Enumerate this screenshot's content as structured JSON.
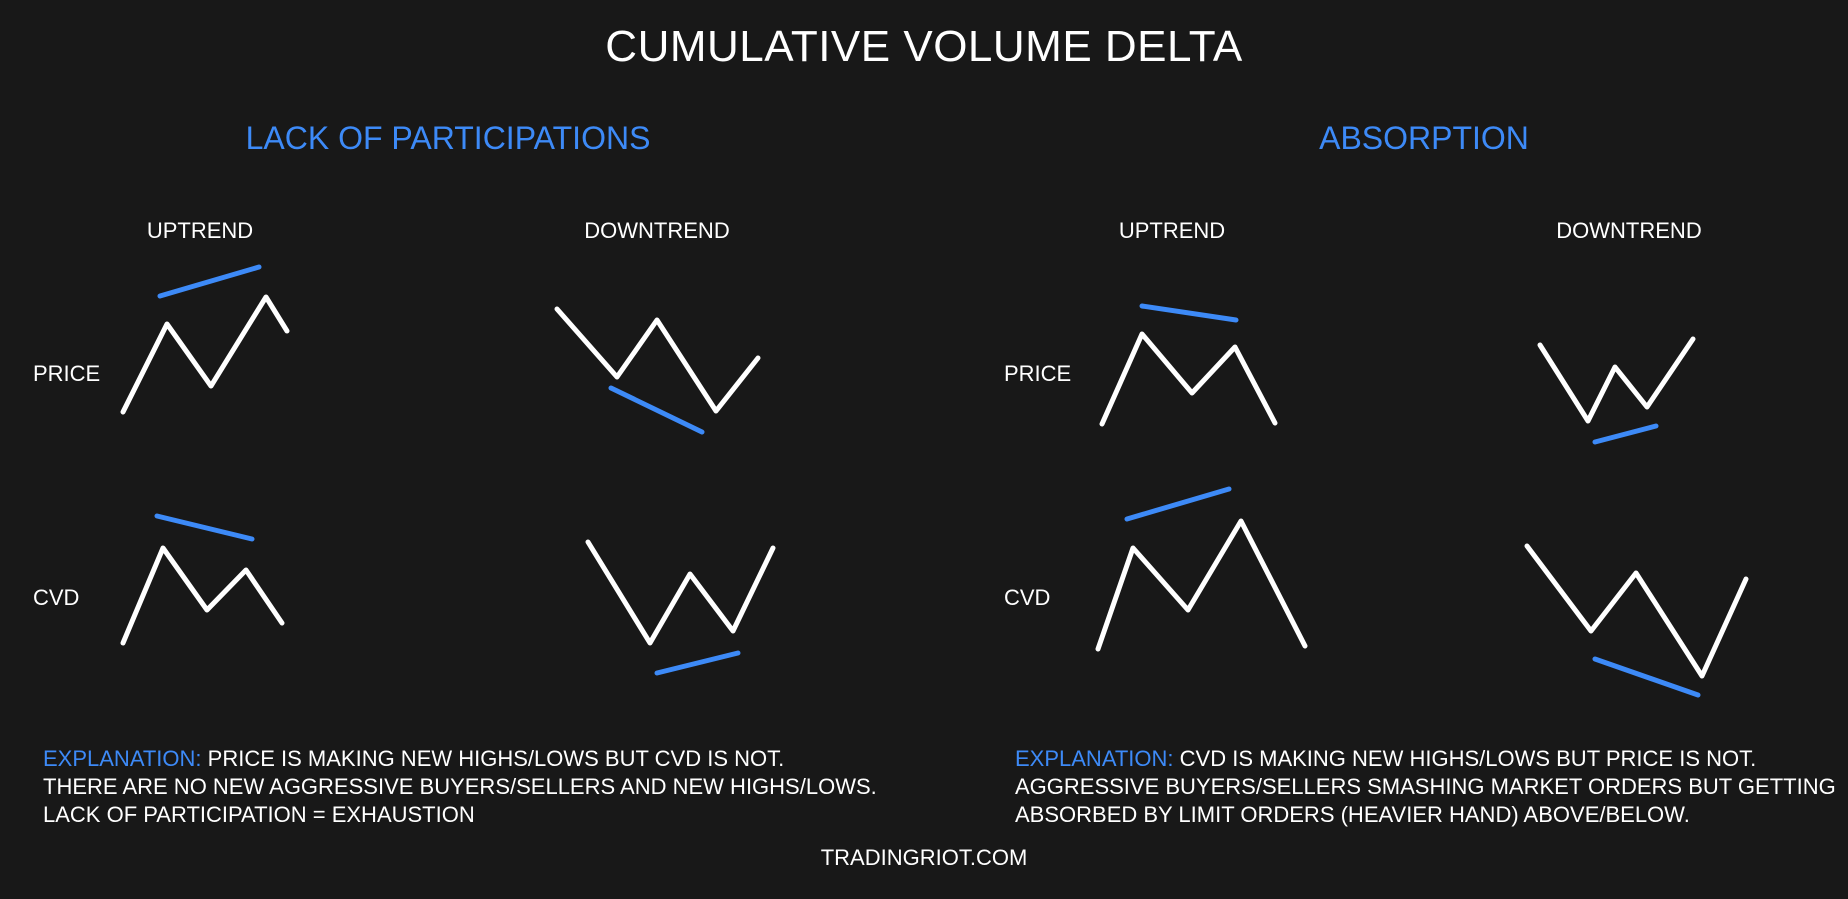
{
  "title": "CUMULATIVE VOLUME DELTA",
  "sections": {
    "left": {
      "title": "LACK OF PARTICIPATIONS",
      "uptrend": "UPTREND",
      "downtrend": "DOWNTREND",
      "price_label": "PRICE",
      "cvd_label": "CVD",
      "explanation": {
        "keyword": "EXPLANATION:",
        "line1": "PRICE IS MAKING NEW HIGHS/LOWS BUT CVD IS NOT.",
        "line2": "THERE ARE NO NEW AGGRESSIVE BUYERS/SELLERS AND NEW HIGHS/LOWS.",
        "line3": "LACK OF PARTICIPATION = EXHAUSTION"
      }
    },
    "right": {
      "title": "ABSORPTION",
      "uptrend": "UPTREND",
      "downtrend": "DOWNTREND",
      "price_label": "PRICE",
      "cvd_label": "CVD",
      "explanation": {
        "keyword": "EXPLANATION:",
        "line1": "CVD IS MAKING NEW HIGHS/LOWS BUT PRICE IS NOT.",
        "line2": "AGGRESSIVE BUYERS/SELLERS SMASHING MARKET ORDERS BUT GETTING",
        "line3": "ABSORBED BY LIMIT ORDERS (HEAVIER HAND) ABOVE/BELOW."
      }
    }
  },
  "footer": "TRADINGRIOT.COM",
  "colors": {
    "background": "#181818",
    "text": "#ffffff",
    "accent": "#3d8af7"
  }
}
